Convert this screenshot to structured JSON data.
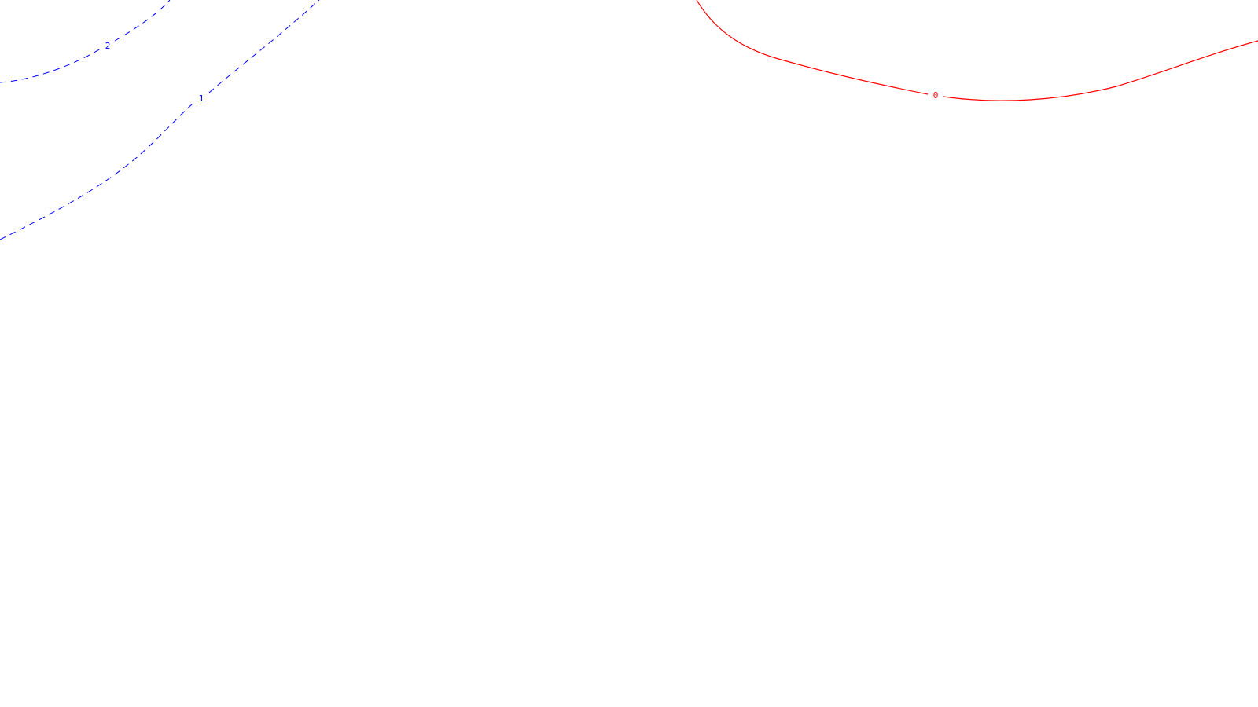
{
  "contours": [
    {
      "name": "contour-2",
      "label": "2",
      "style": "dashed",
      "color": "#0000ff"
    },
    {
      "name": "contour-1",
      "label": "1",
      "style": "dashed",
      "color": "#0000ff"
    },
    {
      "name": "contour-0",
      "label": "0",
      "style": "solid",
      "color": "#ff0000"
    }
  ]
}
